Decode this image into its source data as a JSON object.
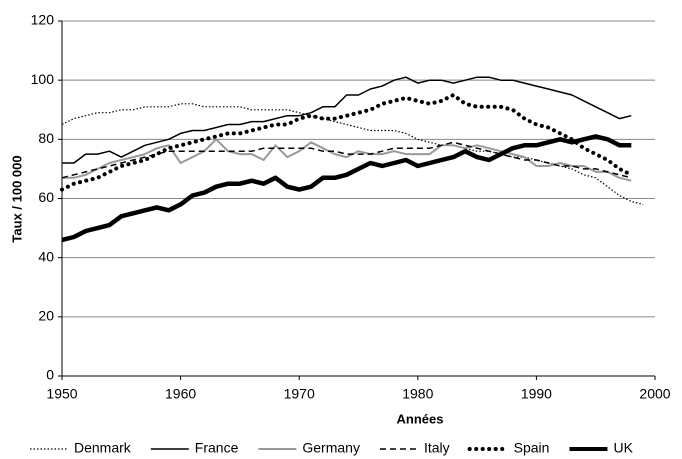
{
  "chart_data": {
    "type": "line",
    "x_label": "Années",
    "y_label": "Taux / 100 000",
    "x": [
      1950,
      1951,
      1952,
      1953,
      1954,
      1955,
      1956,
      1957,
      1958,
      1959,
      1960,
      1961,
      1962,
      1963,
      1964,
      1965,
      1966,
      1967,
      1968,
      1969,
      1970,
      1971,
      1972,
      1973,
      1974,
      1975,
      1976,
      1977,
      1978,
      1979,
      1980,
      1981,
      1982,
      1983,
      1984,
      1985,
      1986,
      1987,
      1988,
      1989,
      1990,
      1991,
      1992,
      1993,
      1994,
      1995,
      1996,
      1997,
      1998,
      1999
    ],
    "xlim": [
      1950,
      2000
    ],
    "xticks": [
      1950,
      1960,
      1970,
      1980,
      1990,
      2000
    ],
    "ylim": [
      0,
      120
    ],
    "yticks": [
      0,
      20,
      40,
      60,
      80,
      100,
      120
    ],
    "grid": true,
    "legend": "bottom",
    "series": [
      {
        "name": "Denmark",
        "color": "#000000",
        "style": "dotted",
        "width": 1.2,
        "values": [
          85,
          87,
          88,
          89,
          89,
          90,
          90,
          91,
          91,
          91,
          92,
          92,
          91,
          91,
          91,
          91,
          90,
          90,
          90,
          90,
          89,
          88,
          87,
          86,
          85,
          84,
          83,
          83,
          83,
          82,
          80,
          79,
          78,
          78,
          77,
          76,
          76,
          75,
          74,
          74,
          73,
          72,
          71,
          70,
          68,
          67,
          64,
          61,
          59,
          58
        ]
      },
      {
        "name": "France",
        "color": "#000000",
        "style": "solid",
        "width": 1.5,
        "values": [
          72,
          72,
          75,
          75,
          76,
          74,
          76,
          78,
          79,
          80,
          82,
          83,
          83,
          84,
          85,
          85,
          86,
          86,
          87,
          88,
          88,
          89,
          91,
          91,
          95,
          95,
          97,
          98,
          100,
          101,
          99,
          100,
          100,
          99,
          100,
          101,
          101,
          100,
          100,
          99,
          98,
          97,
          96,
          95,
          93,
          91,
          89,
          87,
          88,
          null
        ]
      },
      {
        "name": "Germany",
        "color": "#999999",
        "style": "solid",
        "width": 2,
        "values": [
          67,
          67,
          68,
          70,
          72,
          73,
          74,
          75,
          77,
          78,
          72,
          74,
          76,
          80,
          76,
          75,
          75,
          73,
          78,
          74,
          76,
          79,
          77,
          75,
          74,
          76,
          75,
          75,
          76,
          75,
          75,
          75,
          78,
          78,
          77,
          78,
          77,
          76,
          75,
          74,
          71,
          71,
          72,
          71,
          71,
          69,
          69,
          67,
          66,
          null
        ]
      },
      {
        "name": "Italy",
        "color": "#000000",
        "style": "dashed",
        "width": 1.5,
        "values": [
          67,
          68,
          69,
          70,
          71,
          72,
          73,
          74,
          75,
          76,
          76,
          76,
          76,
          76,
          76,
          76,
          76,
          77,
          77,
          77,
          77,
          77,
          76,
          76,
          75,
          75,
          75,
          76,
          77,
          77,
          77,
          77,
          78,
          79,
          78,
          77,
          76,
          75,
          74,
          73,
          73,
          72,
          71,
          71,
          70,
          70,
          69,
          68,
          67,
          null
        ]
      },
      {
        "name": "Spain",
        "color": "#000000",
        "style": "dots",
        "width": 4,
        "values": [
          63,
          65,
          66,
          67,
          69,
          71,
          72,
          73,
          75,
          77,
          78,
          79,
          80,
          81,
          82,
          82,
          83,
          84,
          85,
          85,
          87,
          88,
          87,
          87,
          88,
          89,
          90,
          92,
          93,
          94,
          93,
          92,
          93,
          95,
          92,
          91,
          91,
          91,
          90,
          87,
          85,
          84,
          82,
          80,
          77,
          75,
          73,
          70,
          68,
          null
        ]
      },
      {
        "name": "UK",
        "color": "#000000",
        "style": "solid",
        "width": 4.5,
        "values": [
          46,
          47,
          49,
          50,
          51,
          54,
          55,
          56,
          57,
          56,
          58,
          61,
          62,
          64,
          65,
          65,
          66,
          65,
          67,
          64,
          63,
          64,
          67,
          67,
          68,
          70,
          72,
          71,
          72,
          73,
          71,
          72,
          73,
          74,
          76,
          74,
          73,
          75,
          77,
          78,
          78,
          79,
          80,
          79,
          80,
          81,
          80,
          78,
          78,
          null
        ]
      }
    ]
  }
}
